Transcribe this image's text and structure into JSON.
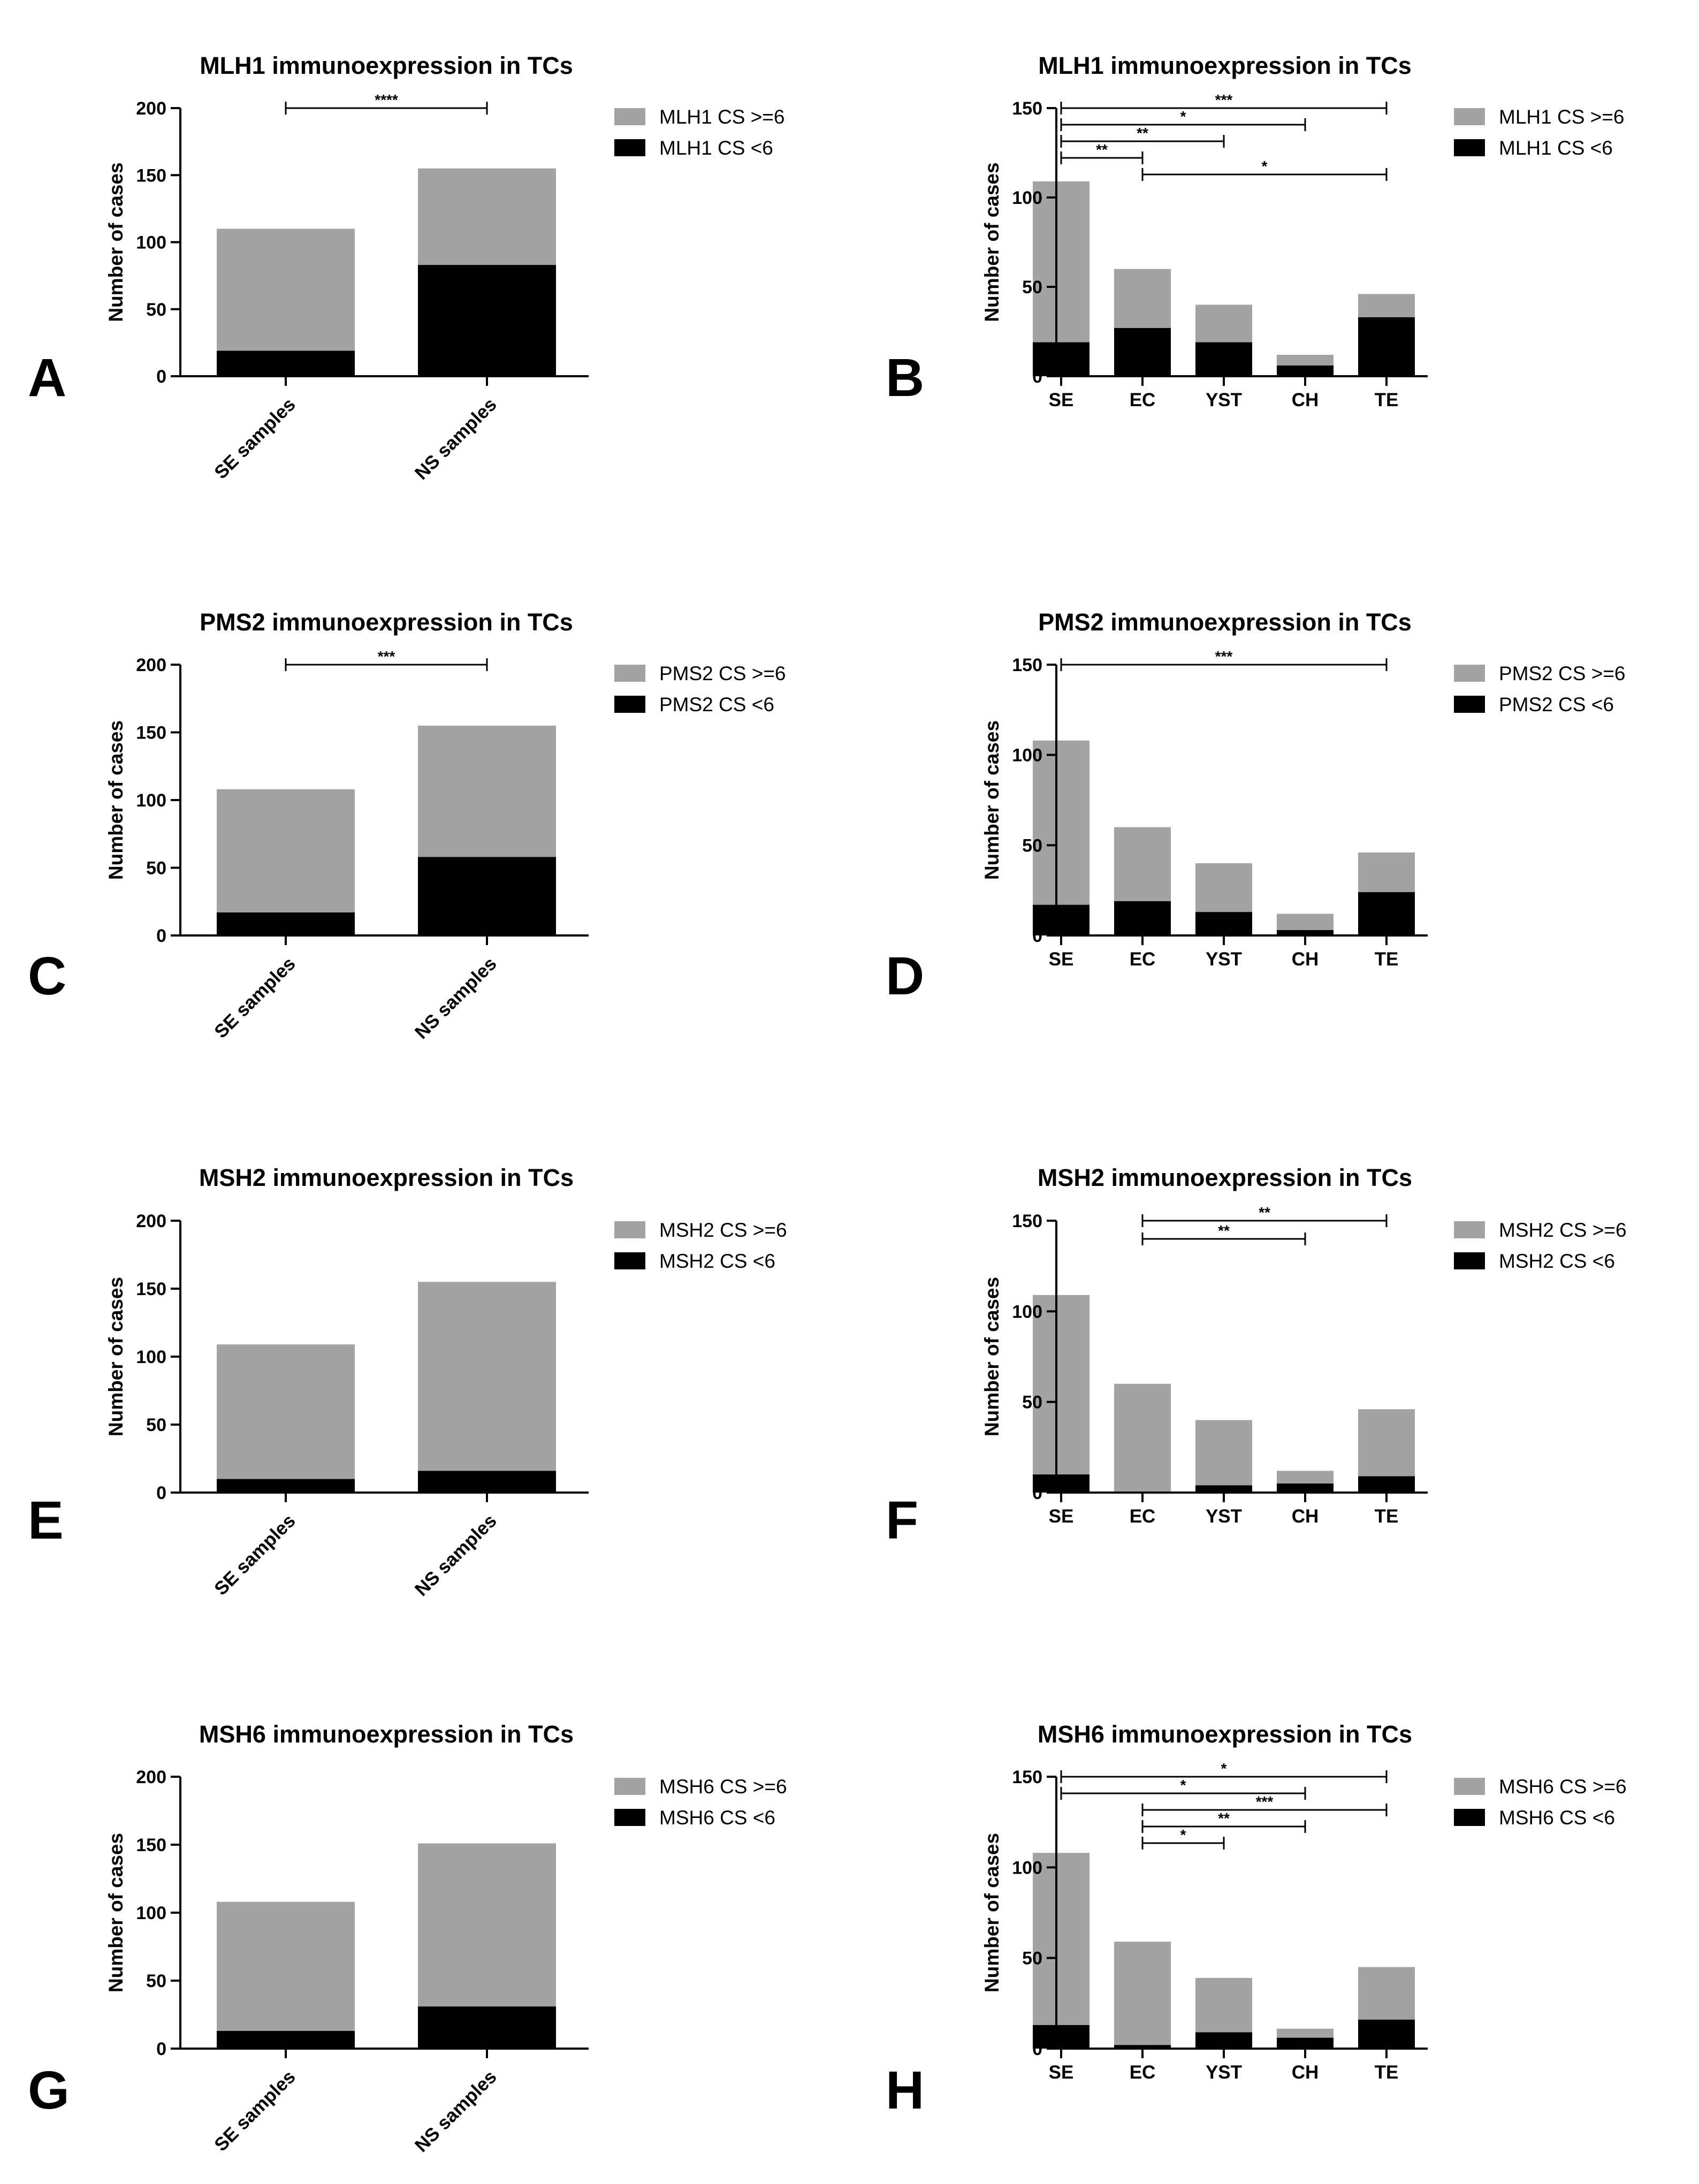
{
  "colors": {
    "high": "#a3a3a5",
    "low": "#000000",
    "axis": "#000000"
  },
  "chart_data": [
    {
      "panel": "A",
      "type": "bar",
      "stacked": true,
      "title": "MLH1 immunoexpression in TCs",
      "ylabel": "Number of cases",
      "ylim": [
        0,
        200
      ],
      "yticks": [
        0,
        50,
        100,
        150,
        200
      ],
      "categories": [
        "SE samples",
        "NS samples"
      ],
      "series": [
        {
          "name": "MLH1 CS >=6",
          "key": "high",
          "values": [
            91,
            72
          ]
        },
        {
          "name": "MLH1 CS <6",
          "key": "low",
          "values": [
            19,
            83
          ]
        }
      ],
      "significance": [
        {
          "from": 0,
          "to": 1,
          "label": "****"
        }
      ]
    },
    {
      "panel": "B",
      "type": "bar",
      "stacked": true,
      "title": "MLH1 immunoexpression in TCs",
      "ylabel": "Number of cases",
      "ylim": [
        0,
        150
      ],
      "yticks": [
        0,
        50,
        100,
        150
      ],
      "categories": [
        "SE",
        "EC",
        "YST",
        "CH",
        "TE"
      ],
      "series": [
        {
          "name": "MLH1 CS >=6",
          "key": "high",
          "values": [
            90,
            33,
            21,
            6,
            13
          ]
        },
        {
          "name": "MLH1 CS <6",
          "key": "low",
          "values": [
            19,
            27,
            19,
            6,
            33
          ]
        }
      ],
      "significance": [
        {
          "from": 0,
          "to": 4,
          "label": "***"
        },
        {
          "from": 0,
          "to": 3,
          "label": "*"
        },
        {
          "from": 0,
          "to": 2,
          "label": "**"
        },
        {
          "from": 0,
          "to": 1,
          "label": "**"
        },
        {
          "from": 1,
          "to": 4,
          "label": "*"
        }
      ]
    },
    {
      "panel": "C",
      "type": "bar",
      "stacked": true,
      "title": "PMS2 immunoexpression in TCs",
      "ylabel": "Number of cases",
      "ylim": [
        0,
        200
      ],
      "yticks": [
        0,
        50,
        100,
        150,
        200
      ],
      "categories": [
        "SE samples",
        "NS samples"
      ],
      "series": [
        {
          "name": "PMS2 CS >=6",
          "key": "high",
          "values": [
            91,
            97
          ]
        },
        {
          "name": "PMS2 CS <6",
          "key": "low",
          "values": [
            17,
            58
          ]
        }
      ],
      "significance": [
        {
          "from": 0,
          "to": 1,
          "label": "***"
        }
      ]
    },
    {
      "panel": "D",
      "type": "bar",
      "stacked": true,
      "title": "PMS2 immunoexpression in TCs",
      "ylabel": "Number of cases",
      "ylim": [
        0,
        150
      ],
      "yticks": [
        0,
        50,
        100,
        150
      ],
      "categories": [
        "SE",
        "EC",
        "YST",
        "CH",
        "TE"
      ],
      "series": [
        {
          "name": "PMS2 CS >=6",
          "key": "high",
          "values": [
            91,
            41,
            27,
            9,
            22
          ]
        },
        {
          "name": "PMS2 CS <6",
          "key": "low",
          "values": [
            17,
            19,
            13,
            3,
            24
          ]
        }
      ],
      "significance": [
        {
          "from": 0,
          "to": 4,
          "label": "***"
        }
      ]
    },
    {
      "panel": "E",
      "type": "bar",
      "stacked": true,
      "title": "MSH2 immunoexpression in TCs",
      "ylabel": "Number of cases",
      "ylim": [
        0,
        200
      ],
      "yticks": [
        0,
        50,
        100,
        150,
        200
      ],
      "categories": [
        "SE samples",
        "NS samples"
      ],
      "series": [
        {
          "name": "MSH2 CS >=6",
          "key": "high",
          "values": [
            99,
            139
          ]
        },
        {
          "name": "MSH2 CS <6",
          "key": "low",
          "values": [
            10,
            16
          ]
        }
      ],
      "significance": []
    },
    {
      "panel": "F",
      "type": "bar",
      "stacked": true,
      "title": "MSH2 immunoexpression in TCs",
      "ylabel": "Number of cases",
      "ylim": [
        0,
        150
      ],
      "yticks": [
        0,
        50,
        100,
        150
      ],
      "categories": [
        "SE",
        "EC",
        "YST",
        "CH",
        "TE"
      ],
      "series": [
        {
          "name": "MSH2 CS >=6",
          "key": "high",
          "values": [
            99,
            60,
            36,
            7,
            37
          ]
        },
        {
          "name": "MSH2 CS <6",
          "key": "low",
          "values": [
            10,
            0,
            4,
            5,
            9
          ]
        }
      ],
      "significance": [
        {
          "from": 1,
          "to": 4,
          "label": "**"
        },
        {
          "from": 1,
          "to": 3,
          "label": "**"
        }
      ]
    },
    {
      "panel": "G",
      "type": "bar",
      "stacked": true,
      "title": "MSH6 immunoexpression in TCs",
      "ylabel": "Number of cases",
      "ylim": [
        0,
        200
      ],
      "yticks": [
        0,
        50,
        100,
        150,
        200
      ],
      "categories": [
        "SE samples",
        "NS samples"
      ],
      "series": [
        {
          "name": "MSH6 CS >=6",
          "key": "high",
          "values": [
            95,
            120
          ]
        },
        {
          "name": "MSH6 CS <6",
          "key": "low",
          "values": [
            13,
            31
          ]
        }
      ],
      "significance": []
    },
    {
      "panel": "H",
      "type": "bar",
      "stacked": true,
      "title": "MSH6 immunoexpression in TCs",
      "ylabel": "Number of cases",
      "ylim": [
        0,
        150
      ],
      "yticks": [
        0,
        50,
        100,
        150
      ],
      "categories": [
        "SE",
        "EC",
        "YST",
        "CH",
        "TE"
      ],
      "series": [
        {
          "name": "MSH6 CS >=6",
          "key": "high",
          "values": [
            95,
            57,
            30,
            5,
            29
          ]
        },
        {
          "name": "MSH6 CS <6",
          "key": "low",
          "values": [
            13,
            2,
            9,
            6,
            16
          ]
        }
      ],
      "significance": [
        {
          "from": 0,
          "to": 4,
          "label": "*"
        },
        {
          "from": 0,
          "to": 3,
          "label": "*"
        },
        {
          "from": 1,
          "to": 4,
          "label": "***"
        },
        {
          "from": 1,
          "to": 3,
          "label": "**"
        },
        {
          "from": 1,
          "to": 2,
          "label": "*"
        }
      ]
    }
  ]
}
